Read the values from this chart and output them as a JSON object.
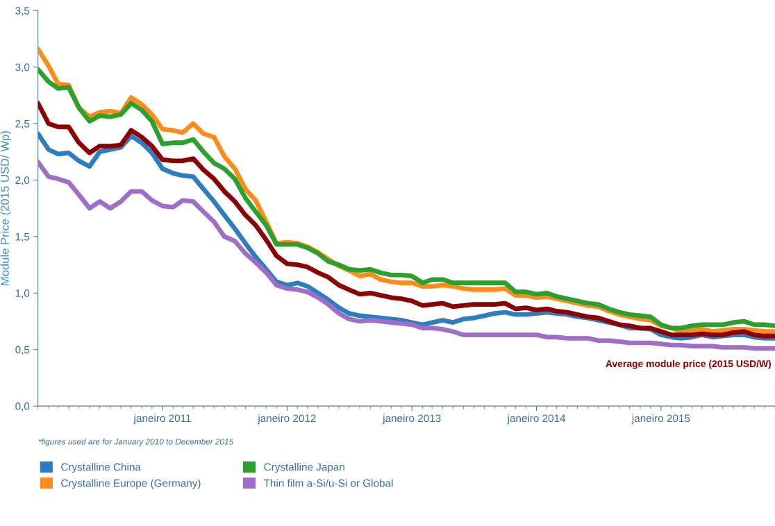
{
  "chart_data": {
    "type": "line",
    "ylabel": "Module Price (2015 USD/ Wp)",
    "x": [
      "2010-01",
      "2010-02",
      "2010-03",
      "2010-04",
      "2010-05",
      "2010-06",
      "2010-07",
      "2010-08",
      "2010-09",
      "2010-10",
      "2010-11",
      "2010-12",
      "2011-01",
      "2011-02",
      "2011-03",
      "2011-04",
      "2011-05",
      "2011-06",
      "2011-07",
      "2011-08",
      "2011-09",
      "2011-10",
      "2011-11",
      "2011-12",
      "2012-01",
      "2012-02",
      "2012-03",
      "2012-04",
      "2012-05",
      "2012-06",
      "2012-07",
      "2012-08",
      "2012-09",
      "2012-10",
      "2012-11",
      "2012-12",
      "2013-01",
      "2013-02",
      "2013-03",
      "2013-04",
      "2013-05",
      "2013-06",
      "2013-07",
      "2013-08",
      "2013-09",
      "2013-10",
      "2013-11",
      "2013-12",
      "2014-01",
      "2014-02",
      "2014-03",
      "2014-04",
      "2014-05",
      "2014-06",
      "2014-07",
      "2014-08",
      "2014-09",
      "2014-10",
      "2014-11",
      "2014-12",
      "2015-01",
      "2015-02",
      "2015-03",
      "2015-04",
      "2015-05",
      "2015-06",
      "2015-07",
      "2015-08",
      "2015-09",
      "2015-10",
      "2015-11",
      "2015-12"
    ],
    "series": [
      {
        "name": "Crystalline China",
        "color": "#2e7dbf",
        "values": [
          2.41,
          2.27,
          2.23,
          2.24,
          2.17,
          2.12,
          2.25,
          2.27,
          2.29,
          2.39,
          2.33,
          2.24,
          2.1,
          2.06,
          2.04,
          2.03,
          1.92,
          1.81,
          1.69,
          1.57,
          1.44,
          1.32,
          1.21,
          1.1,
          1.07,
          1.09,
          1.06,
          1.0,
          0.94,
          0.87,
          0.82,
          0.8,
          0.79,
          0.78,
          0.77,
          0.76,
          0.74,
          0.72,
          0.74,
          0.76,
          0.74,
          0.77,
          0.78,
          0.8,
          0.82,
          0.83,
          0.81,
          0.81,
          0.82,
          0.83,
          0.82,
          0.81,
          0.79,
          0.78,
          0.76,
          0.74,
          0.72,
          0.69,
          0.69,
          0.68,
          0.63,
          0.61,
          0.6,
          0.61,
          0.63,
          0.61,
          0.62,
          0.63,
          0.63,
          0.61,
          0.6,
          0.6
        ]
      },
      {
        "name": "Crystalline Europe (Germany)",
        "color": "#ff8c1a",
        "values": [
          3.16,
          3.01,
          2.85,
          2.84,
          2.64,
          2.56,
          2.6,
          2.61,
          2.59,
          2.73,
          2.67,
          2.58,
          2.45,
          2.44,
          2.42,
          2.5,
          2.41,
          2.38,
          2.21,
          2.1,
          1.92,
          1.82,
          1.63,
          1.44,
          1.45,
          1.44,
          1.41,
          1.36,
          1.3,
          1.24,
          1.2,
          1.15,
          1.17,
          1.12,
          1.1,
          1.09,
          1.09,
          1.06,
          1.06,
          1.07,
          1.06,
          1.04,
          1.03,
          1.03,
          1.03,
          1.04,
          0.98,
          0.98,
          0.96,
          0.97,
          0.95,
          0.93,
          0.91,
          0.89,
          0.88,
          0.84,
          0.81,
          0.79,
          0.77,
          0.76,
          0.71,
          0.69,
          0.66,
          0.67,
          0.68,
          0.66,
          0.67,
          0.68,
          0.68,
          0.67,
          0.66,
          0.66
        ]
      },
      {
        "name": "Crystalline Japan",
        "color": "#2ca02c",
        "values": [
          2.98,
          2.87,
          2.81,
          2.82,
          2.64,
          2.52,
          2.57,
          2.56,
          2.58,
          2.68,
          2.62,
          2.52,
          2.32,
          2.33,
          2.33,
          2.36,
          2.25,
          2.15,
          2.1,
          2.01,
          1.84,
          1.72,
          1.6,
          1.43,
          1.43,
          1.43,
          1.4,
          1.35,
          1.28,
          1.25,
          1.21,
          1.2,
          1.21,
          1.18,
          1.16,
          1.16,
          1.15,
          1.09,
          1.12,
          1.12,
          1.09,
          1.09,
          1.09,
          1.09,
          1.09,
          1.09,
          1.01,
          1.01,
          0.99,
          1.0,
          0.97,
          0.95,
          0.93,
          0.91,
          0.9,
          0.86,
          0.83,
          0.81,
          0.8,
          0.79,
          0.72,
          0.69,
          0.69,
          0.71,
          0.72,
          0.72,
          0.72,
          0.74,
          0.75,
          0.72,
          0.72,
          0.71
        ]
      },
      {
        "name": "Thin film a-Si/u-Si or Global",
        "color": "#9f6fc8",
        "values": [
          2.16,
          2.03,
          2.01,
          1.98,
          1.87,
          1.75,
          1.81,
          1.75,
          1.81,
          1.9,
          1.9,
          1.82,
          1.77,
          1.76,
          1.82,
          1.81,
          1.72,
          1.63,
          1.5,
          1.46,
          1.35,
          1.27,
          1.18,
          1.07,
          1.04,
          1.03,
          1.01,
          0.96,
          0.9,
          0.82,
          0.77,
          0.75,
          0.76,
          0.75,
          0.74,
          0.73,
          0.72,
          0.69,
          0.69,
          0.68,
          0.66,
          0.63,
          0.63,
          0.63,
          0.63,
          0.63,
          0.63,
          0.63,
          0.63,
          0.61,
          0.61,
          0.6,
          0.6,
          0.6,
          0.58,
          0.58,
          0.57,
          0.56,
          0.56,
          0.56,
          0.55,
          0.54,
          0.54,
          0.53,
          0.53,
          0.53,
          0.52,
          0.52,
          0.52,
          0.51,
          0.51,
          0.51
        ]
      },
      {
        "color": "#8b0000",
        "values": [
          2.68,
          2.5,
          2.47,
          2.47,
          2.33,
          2.24,
          2.3,
          2.3,
          2.31,
          2.44,
          2.38,
          2.3,
          2.18,
          2.17,
          2.17,
          2.19,
          2.09,
          2.01,
          1.9,
          1.81,
          1.69,
          1.6,
          1.47,
          1.33,
          1.26,
          1.25,
          1.23,
          1.18,
          1.14,
          1.07,
          1.03,
          0.99,
          1.0,
          0.98,
          0.96,
          0.95,
          0.93,
          0.89,
          0.9,
          0.91,
          0.88,
          0.89,
          0.9,
          0.9,
          0.9,
          0.91,
          0.86,
          0.87,
          0.85,
          0.86,
          0.84,
          0.83,
          0.81,
          0.79,
          0.78,
          0.75,
          0.72,
          0.71,
          0.69,
          0.69,
          0.66,
          0.63,
          0.63,
          0.63,
          0.64,
          0.63,
          0.63,
          0.65,
          0.66,
          0.63,
          0.62,
          0.62
        ]
      }
    ],
    "xlim": [
      "2010-01",
      "2015-12"
    ],
    "xticks": [
      {
        "value": "2011-01",
        "label": "janeiro 2011"
      },
      {
        "value": "2012-01",
        "label": "janeiro 2012"
      },
      {
        "value": "2013-01",
        "label": "janeiro 2013"
      },
      {
        "value": "2014-01",
        "label": "janeiro 2014"
      },
      {
        "value": "2015-01",
        "label": "janeiro 2015"
      }
    ],
    "ylim": [
      0,
      3.5
    ],
    "yticks": [
      {
        "value": 0,
        "label": "0,0"
      },
      {
        "value": 0.5,
        "label": "0,5"
      },
      {
        "value": 1,
        "label": "1,0"
      },
      {
        "value": 1.5,
        "label": "1,5"
      },
      {
        "value": 2,
        "label": "2,0"
      },
      {
        "value": 2.5,
        "label": "2,5"
      },
      {
        "value": 3,
        "label": "3,0"
      },
      {
        "value": 3.5,
        "label": "3,5"
      }
    ],
    "annotations": [
      "Average module price (2015 USD/W)",
      "*figures used are for January 2010 to December 2015"
    ],
    "grid": false,
    "legend": "bottom",
    "marker": "none",
    "line_style": "solid"
  }
}
